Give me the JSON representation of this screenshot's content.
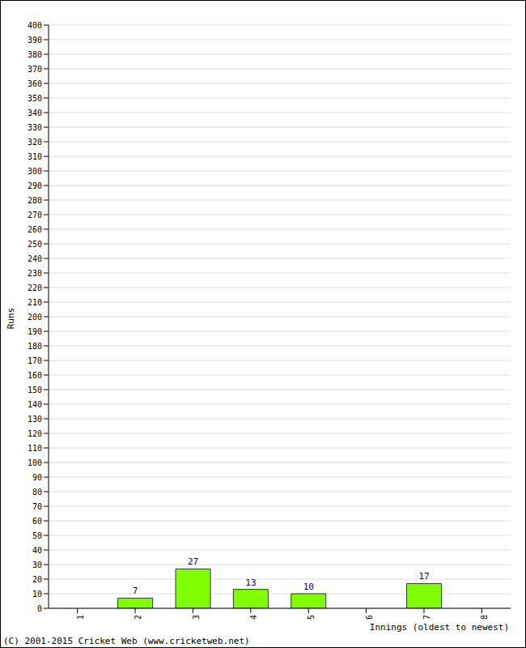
{
  "chart_data": {
    "type": "bar",
    "categories": [
      "1",
      "2",
      "3",
      "4",
      "5",
      "6",
      "7",
      "8"
    ],
    "values": [
      0,
      7,
      27,
      13,
      10,
      0,
      17,
      0
    ],
    "color": "#80ff00",
    "x_label": "Innings (oldest to newest)",
    "y_label": "Runs",
    "annotations": [
      "(C) 2001-2015 Cricket Web (www.cricketweb.net)"
    ],
    "ylim": [
      0,
      400
    ],
    "yticks": [
      0,
      10,
      20,
      30,
      40,
      50,
      60,
      70,
      80,
      90,
      100,
      110,
      120,
      130,
      140,
      150,
      160,
      170,
      180,
      190,
      200,
      210,
      220,
      230,
      240,
      250,
      260,
      270,
      280,
      290,
      300,
      310,
      320,
      330,
      340,
      350,
      360,
      370,
      380,
      390,
      400
    ],
    "grid": true,
    "data_labels": true
  }
}
